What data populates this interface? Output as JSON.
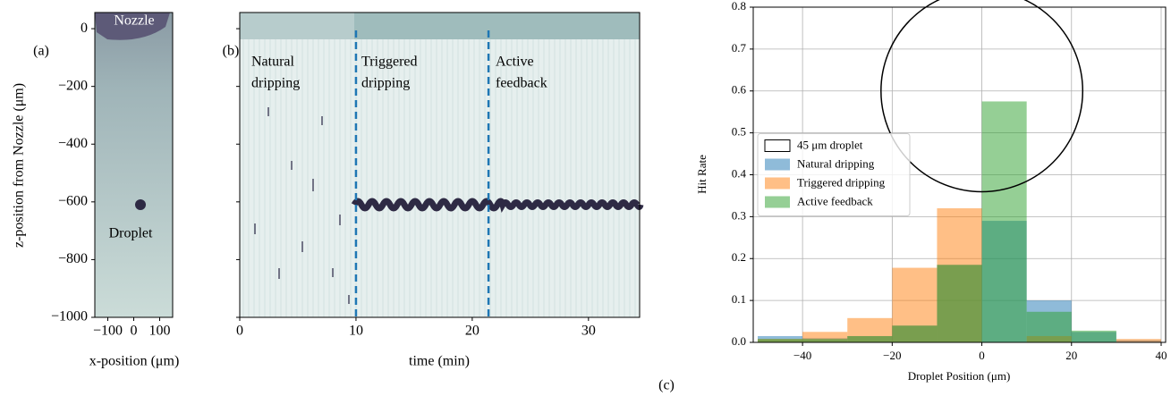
{
  "chart_data": [
    {
      "type": "image",
      "panel_label": "(a)",
      "xlabel": "x-position (μm)",
      "ylabel": "z-position from Nozzle (μm)",
      "annotations": [
        "Nozzle",
        "Droplet"
      ],
      "xlim": [
        -150,
        150
      ],
      "ylim": [
        -1000,
        56
      ],
      "xticks": [
        {
          "value": -100,
          "label": "−100"
        },
        0,
        100
      ],
      "yticks": [
        0,
        {
          "value": -200,
          "label": "−200"
        },
        {
          "value": -400,
          "label": "−400"
        },
        {
          "value": -600,
          "label": "−600"
        },
        {
          "value": -800,
          "label": "−800"
        },
        {
          "value": -1000,
          "label": "−1000"
        }
      ],
      "ytick_labels": true
    },
    {
      "type": "image",
      "panel_label": "(b)",
      "xlabel": "time (min)",
      "annotations": [
        [
          "Natural",
          "dripping"
        ],
        [
          "Triggered",
          "dripping"
        ],
        [
          "Active",
          "feedback"
        ]
      ],
      "xlim": [
        0,
        34.4
      ],
      "ylim": [
        -1000,
        56
      ],
      "xticks": [
        0,
        10,
        20,
        30
      ],
      "yticks": [
        0,
        -200,
        -400,
        -600,
        -800,
        -1000
      ],
      "ytick_labels": false,
      "vlines": [
        10,
        21.4
      ],
      "vline_color": "#1f77b4"
    },
    {
      "type": "histogram",
      "panel_label": "(c)",
      "xlabel": "Droplet Position (μm)",
      "ylabel": "Hit Rate",
      "bins": [
        -50,
        -40,
        -30,
        -20,
        -10,
        0,
        10,
        20,
        30,
        40
      ],
      "series": [
        {
          "name": "Natural dripping",
          "color": "#1f77b4",
          "values": [
            0.015,
            0.01,
            0.015,
            0.04,
            0.185,
            0.29,
            0.1,
            0.025,
            0.005
          ]
        },
        {
          "name": "Triggered dripping",
          "color": "#ff7f0e",
          "values": [
            0.008,
            0.025,
            0.058,
            0.178,
            0.32,
            0.0,
            0.015,
            0.0,
            0.008
          ]
        },
        {
          "name": "Active feedback",
          "color": "#2ca02c",
          "values": [
            0.008,
            0.008,
            0.015,
            0.04,
            0.185,
            0.575,
            0.073,
            0.028,
            0.0
          ]
        }
      ],
      "circle": {
        "name": "45 μm droplet",
        "center": [
          0,
          0.6
        ],
        "diameter": 45
      },
      "xlim": [
        -51,
        41
      ],
      "ylim": [
        0,
        0.8
      ],
      "xticks": [
        {
          "value": -40,
          "label": "−40"
        },
        {
          "value": -20,
          "label": "−20"
        },
        0,
        20,
        40
      ],
      "yticks": [
        {
          "value": 0,
          "label": "0.0"
        },
        {
          "value": 0.1,
          "label": "0.1"
        },
        {
          "value": 0.2,
          "label": "0.2"
        },
        {
          "value": 0.3,
          "label": "0.3"
        },
        {
          "value": 0.4,
          "label": "0.4"
        },
        {
          "value": 0.5,
          "label": "0.5"
        },
        {
          "value": 0.6,
          "label": "0.6"
        },
        {
          "value": 0.7,
          "label": "0.7"
        },
        {
          "value": 0.8,
          "label": "0.8"
        }
      ],
      "ytick_labels": true,
      "grid": true,
      "legend": "center left"
    }
  ]
}
